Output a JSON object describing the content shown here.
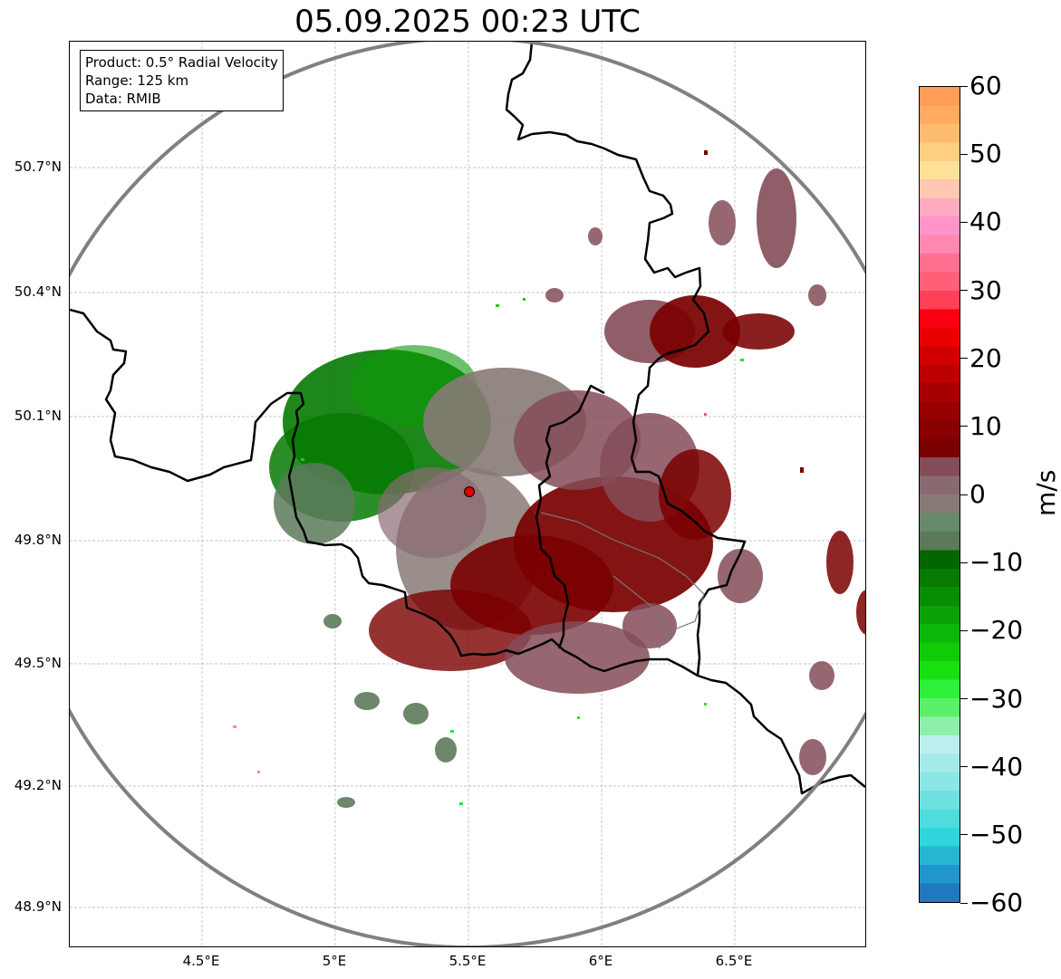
{
  "title": "05.09.2025 00:23 UTC",
  "info": {
    "product": "Product: 0.5° Radial Velocity",
    "range": "Range: 125 km",
    "data": "Data: RMIB"
  },
  "y_ticks": [
    "50.7°N",
    "50.4°N",
    "50.1°N",
    "49.8°N",
    "49.5°N",
    "49.2°N",
    "48.9°N"
  ],
  "x_ticks": [
    "4.5°E",
    "5°E",
    "5.5°E",
    "6°E",
    "6.5°E"
  ],
  "colorbar": {
    "unit": "m/s",
    "ticks": [
      "60",
      "50",
      "40",
      "30",
      "20",
      "10",
      "0",
      "−10",
      "−20",
      "−30",
      "−40",
      "−50",
      "−60"
    ],
    "range": [
      -60,
      60
    ],
    "bands": [
      "#1f78c0",
      "#2196cc",
      "#26b6d4",
      "#2fd6dc",
      "#4fdcdc",
      "#6fe0e0",
      "#8ce6e6",
      "#a4eaea",
      "#bdeeee",
      "#8ef0a8",
      "#5cf06a",
      "#2ef03a",
      "#18e010",
      "#10cc08",
      "#0cb808",
      "#0aa206",
      "#088e04",
      "#067a02",
      "#046602",
      "#5c7a5a",
      "#668a6a",
      "#877a76",
      "#8a6a72",
      "#844c58",
      "#7a0000",
      "#880000",
      "#980000",
      "#a80000",
      "#bc0000",
      "#d00000",
      "#e80000",
      "#f80010",
      "#ff4058",
      "#ff6078",
      "#ff7090",
      "#ff88b0",
      "#ff94c8",
      "#ffaac0",
      "#ffc8b0",
      "#ffe098",
      "#ffd080",
      "#ffbc70",
      "#ffaa60",
      "#ff9c58"
    ]
  },
  "map": {
    "radar_site_color": "#e00000",
    "range_ring_color": "#808080",
    "echo_colors": {
      "receding_strong": "#7a0000",
      "receding_weak": "#844c58",
      "near_zero": "#877a76",
      "approaching_weak": "#5c7a5a",
      "approaching_strong": "#067a02"
    }
  }
}
